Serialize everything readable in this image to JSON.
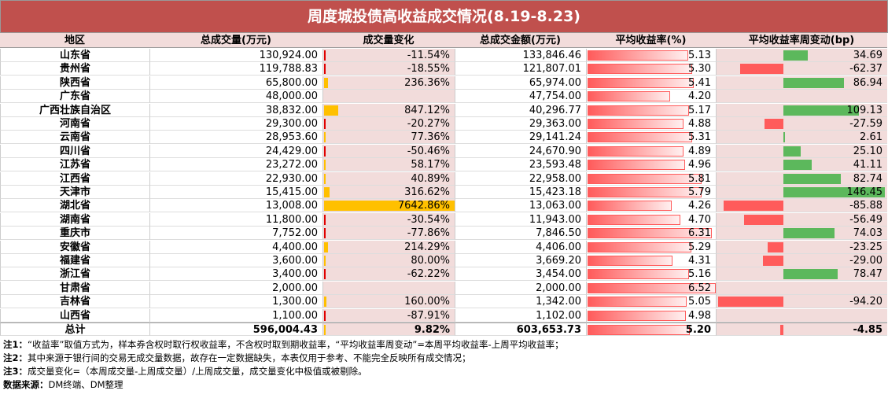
{
  "title": "周度城投债高收益成交情况(8.19-8.23)",
  "columns": [
    "地区",
    "总成交量(万元)",
    "成交量变化",
    "总成交金额(万元)",
    "平均收益率(%)",
    "平均收益率周变动(bp)"
  ],
  "rows": [
    [
      "山东省",
      "130,924.00",
      "-11.54%",
      "133,846.46",
      "5.13",
      "34.69"
    ],
    [
      "贵州省",
      "119,788.83",
      "-18.55%",
      "121,807.01",
      "5.30",
      "-62.37"
    ],
    [
      "陕西省",
      "65,800.00",
      "236.36%",
      "65,974.00",
      "5.41",
      "86.94"
    ],
    [
      "广东省",
      "48,000.00",
      null,
      "47,754.00",
      "4.20",
      null
    ],
    [
      "广西壮族自治区",
      "38,832.00",
      "847.12%",
      "40,296.77",
      "5.17",
      "109.13"
    ],
    [
      "河南省",
      "29,300.00",
      "-20.27%",
      "29,363.00",
      "4.88",
      "-27.59"
    ],
    [
      "云南省",
      "28,953.60",
      "77.36%",
      "29,141.24",
      "5.31",
      "2.61"
    ],
    [
      "四川省",
      "24,429.00",
      "-50.46%",
      "24,670.90",
      "4.89",
      "25.10"
    ],
    [
      "江苏省",
      "23,272.00",
      "58.17%",
      "23,593.48",
      "4.96",
      "41.11"
    ],
    [
      "江西省",
      "22,930.00",
      "40.89%",
      "22,958.00",
      "5.81",
      "82.74"
    ],
    [
      "天津市",
      "15,415.00",
      "316.62%",
      "15,423.18",
      "5.79",
      "146.45"
    ],
    [
      "湖北省",
      "13,008.00",
      "7642.86%",
      "13,063.00",
      "4.26",
      "-85.88"
    ],
    [
      "湖南省",
      "11,800.00",
      "-30.54%",
      "11,943.00",
      "4.70",
      "-56.49"
    ],
    [
      "重庆市",
      "7,752.00",
      "-77.86%",
      "7,846.50",
      "6.31",
      "74.03"
    ],
    [
      "安徽省",
      "4,400.00",
      "214.29%",
      "4,406.00",
      "5.29",
      "-23.25"
    ],
    [
      "福建省",
      "3,600.00",
      "80.00%",
      "3,669.20",
      "4.31",
      "-29.00"
    ],
    [
      "浙江省",
      "3,400.00",
      "-62.22%",
      "3,454.00",
      "5.16",
      "78.47"
    ],
    [
      "甘肃省",
      "2,000.00",
      null,
      "2,000.00",
      "6.52",
      null
    ],
    [
      "吉林省",
      "1,300.00",
      "160.00%",
      "1,342.00",
      "5.05",
      "-94.20"
    ],
    [
      "山西省",
      "1,100.00",
      "-87.91%",
      "1,102.00",
      "4.98",
      null
    ],
    [
      "总计",
      "596,004.43",
      "9.82%",
      "603,653.73",
      "5.20",
      "-4.85"
    ]
  ],
  "notes": [
    {
      "label": "注1：",
      "text": "“收益率”取值方式为，样本券含权时取行权收益率，不含权时取到期收益率，“平均收益率周变动”=本周平均收益率-上周平均收益率；"
    },
    {
      "label": "注2：",
      "text": "其中来源于银行间的交易无成交量数据，故存在一定数据缺失，本表仅用于参考、不能完全反映所有成交情况；"
    },
    {
      "label": "注3：",
      "text": "成交量变化=（本周成交量-上周成交量）/上周成交量，成交量变化中极值或被剔除。"
    },
    {
      "label": "数据来源：",
      "text": "DM终端、DM整理"
    }
  ]
}
